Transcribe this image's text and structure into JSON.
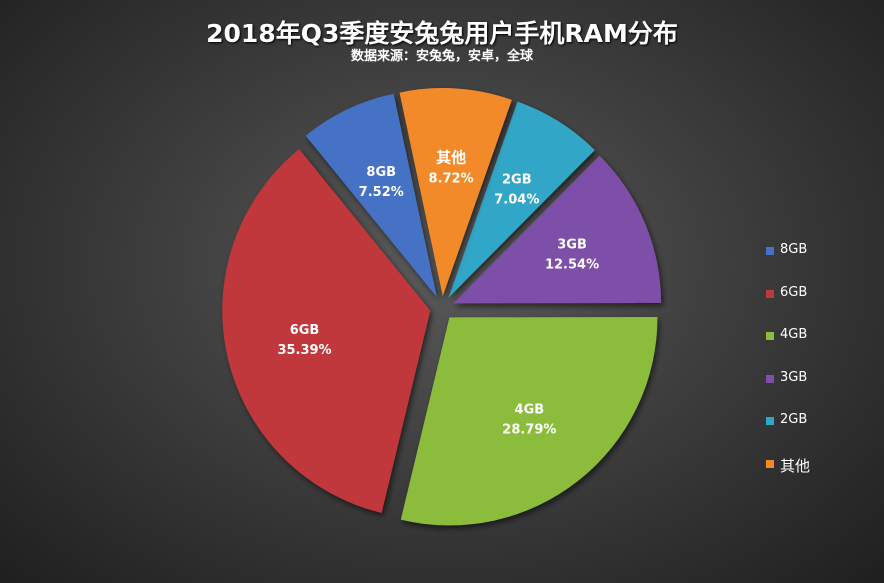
{
  "title": "2018年Q3季度安兔兔用户手机RAM分布",
  "subtitle": "数据来源：安兔兔，安卓，全球",
  "legend_position": "right",
  "chart_data": {
    "type": "pie",
    "title": "2018年Q3季度安兔兔用户手机RAM分布",
    "subtitle": "数据来源：安兔兔，安卓，全球",
    "exploded": true,
    "slices": [
      {
        "label": "8GB",
        "value": 7.52,
        "percent_label": "7.52%",
        "color": "#4472c4"
      },
      {
        "label": "6GB",
        "value": 35.39,
        "percent_label": "35.39%",
        "color": "#c0393a"
      },
      {
        "label": "4GB",
        "value": 28.79,
        "percent_label": "28.79%",
        "color": "#8cbc3b"
      },
      {
        "label": "3GB",
        "value": 12.54,
        "percent_label": "12.54%",
        "color": "#7e4fa8"
      },
      {
        "label": "2GB",
        "value": 7.04,
        "percent_label": "7.04%",
        "color": "#30a6c6"
      },
      {
        "label": "其他",
        "value": 8.72,
        "percent_label": "8.72%",
        "color": "#f28a2c"
      }
    ]
  }
}
